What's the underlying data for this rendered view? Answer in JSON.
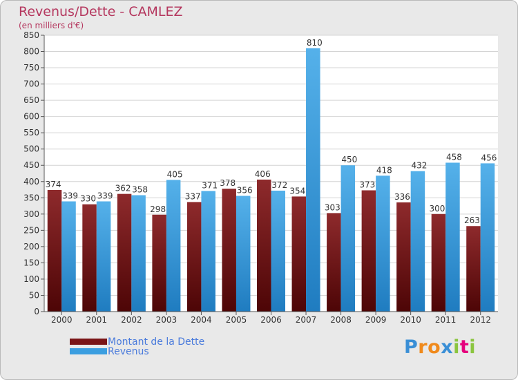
{
  "title": "Revenus/Dette - CAMLEZ",
  "subtitle": "(en milliers d'€)",
  "logo": {
    "text": "Proxiti",
    "letters": [
      {
        "ch": "P",
        "color": "#3a8fd6"
      },
      {
        "ch": "r",
        "color": "#f08a1c"
      },
      {
        "ch": "o",
        "color": "#f08a1c"
      },
      {
        "ch": "x",
        "color": "#3a8fd6"
      },
      {
        "ch": "i",
        "color": "#8bc53f"
      },
      {
        "ch": "t",
        "color": "#e5007d"
      },
      {
        "ch": "i",
        "color": "#8bc53f"
      }
    ]
  },
  "colors": {
    "dette": "#7a1416",
    "revenus": "#3b9ee0",
    "title": "#b5385f",
    "legend_text": "#4a7bdc"
  },
  "legend": [
    {
      "label": "Montant de la Dette",
      "color": "#7a1416"
    },
    {
      "label": "Revenus",
      "color": "#3b9ee0"
    }
  ],
  "chart_data": {
    "type": "bar",
    "categories": [
      "2000",
      "2001",
      "2002",
      "2003",
      "2004",
      "2005",
      "2006",
      "2007",
      "2008",
      "2009",
      "2010",
      "2011",
      "2012"
    ],
    "series": [
      {
        "name": "Montant de la Dette",
        "values": [
          374,
          330,
          362,
          298,
          337,
          378,
          406,
          354,
          303,
          373,
          336,
          300,
          263
        ]
      },
      {
        "name": "Revenus",
        "values": [
          339,
          339,
          358,
          405,
          371,
          356,
          372,
          810,
          450,
          418,
          432,
          458,
          456
        ]
      }
    ],
    "ylim": [
      0,
      850
    ],
    "yticks": [
      0,
      50,
      100,
      150,
      200,
      250,
      300,
      350,
      400,
      450,
      500,
      550,
      600,
      650,
      700,
      750,
      800,
      850
    ],
    "grid": true,
    "legend_position": "bottom-left"
  }
}
